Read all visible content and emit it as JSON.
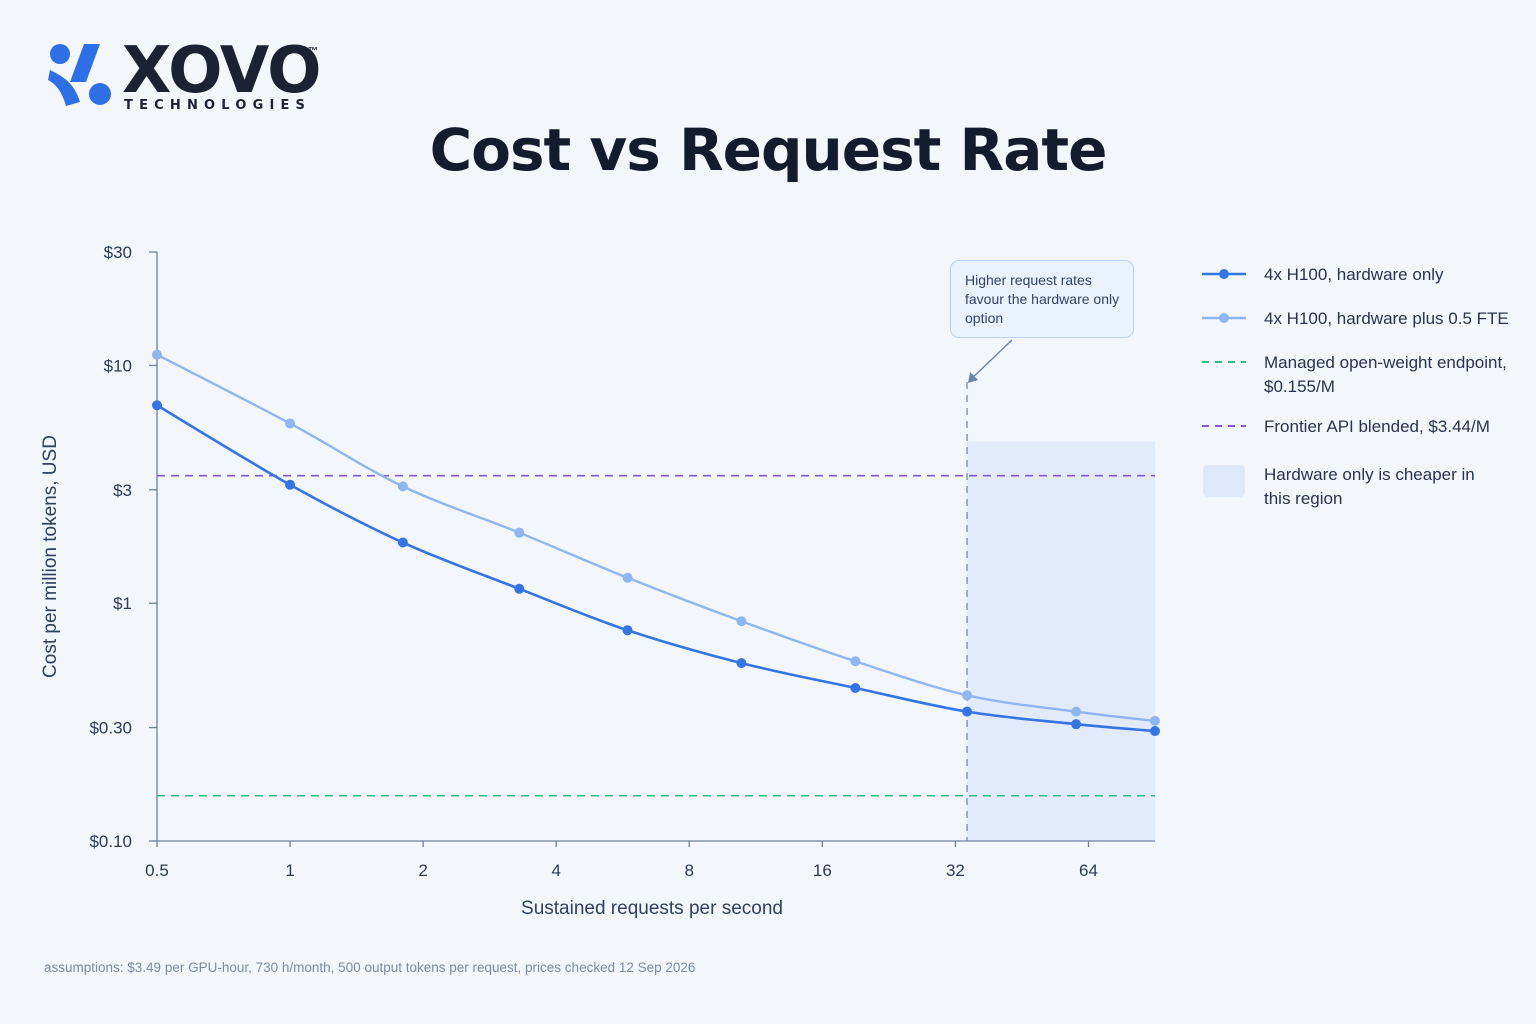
{
  "brand": {
    "wordmark": "XOVO",
    "tm": "™",
    "subtitle": "TECHNOLOGIES",
    "colors": {
      "accent": "#2f6fe6",
      "dark": "#1c2233"
    }
  },
  "chart_data": {
    "type": "line",
    "title": "Cost vs Request Rate",
    "xlabel": "Sustained requests per second",
    "ylabel": "Cost per million tokens, USD",
    "x_scale": "log2",
    "y_scale": "log10",
    "xlim": [
      0.5,
      90.5
    ],
    "ylim": [
      0.1,
      30
    ],
    "x_ticks": [
      {
        "value": 0.5,
        "label": "0.5"
      },
      {
        "value": 1,
        "label": "1"
      },
      {
        "value": 2,
        "label": "2"
      },
      {
        "value": 4,
        "label": "4"
      },
      {
        "value": 8,
        "label": "8"
      },
      {
        "value": 16,
        "label": "16"
      },
      {
        "value": 32,
        "label": "32"
      },
      {
        "value": 64,
        "label": "64"
      }
    ],
    "y_ticks": [
      {
        "value": 0.1,
        "label": "$0.10"
      },
      {
        "value": 0.3,
        "label": "$0.30"
      },
      {
        "value": 1,
        "label": "$1"
      },
      {
        "value": 3,
        "label": "$3"
      },
      {
        "value": 10,
        "label": "$10"
      },
      {
        "value": 30,
        "label": "$30"
      }
    ],
    "grid": false,
    "legend_position": "right",
    "series": [
      {
        "name": "4x H100, hardware only",
        "color": "#3574e3",
        "x": [
          0.5,
          1,
          1.8,
          3.3,
          5.8,
          10.5,
          19,
          34,
          60,
          90.5
        ],
        "y": [
          6.8,
          3.15,
          1.8,
          1.15,
          0.77,
          0.56,
          0.44,
          0.35,
          0.31,
          0.29
        ]
      },
      {
        "name": "4x H100, hardware plus 0.5 FTE",
        "color": "#8fb6f0",
        "x": [
          0.5,
          1,
          1.8,
          3.3,
          5.8,
          10.5,
          19,
          34,
          60,
          90.5
        ],
        "y": [
          11.1,
          5.7,
          3.1,
          1.98,
          1.28,
          0.84,
          0.57,
          0.41,
          0.35,
          0.32
        ]
      }
    ],
    "reference_lines": [
      {
        "name": "Managed open-weight endpoint, $0.155/M",
        "value": 0.155,
        "color": "#2cbf7a"
      },
      {
        "name": "Frontier API blended, $3.44/M",
        "value": 3.44,
        "color": "#8b52e0"
      }
    ],
    "region": {
      "name": "Hardware only is cheaper in this region",
      "x_start": 34,
      "x_end": 90.5,
      "y_top": 4.8,
      "color": "#dde9fb"
    },
    "annotation": {
      "text": "Higher request rates favour the hardware only option",
      "points_to_x": 34
    },
    "footnote": "assumptions: $3.49 per GPU-hour, 730 h/month, 500 output tokens per request, prices checked 12 Sep 2026"
  }
}
